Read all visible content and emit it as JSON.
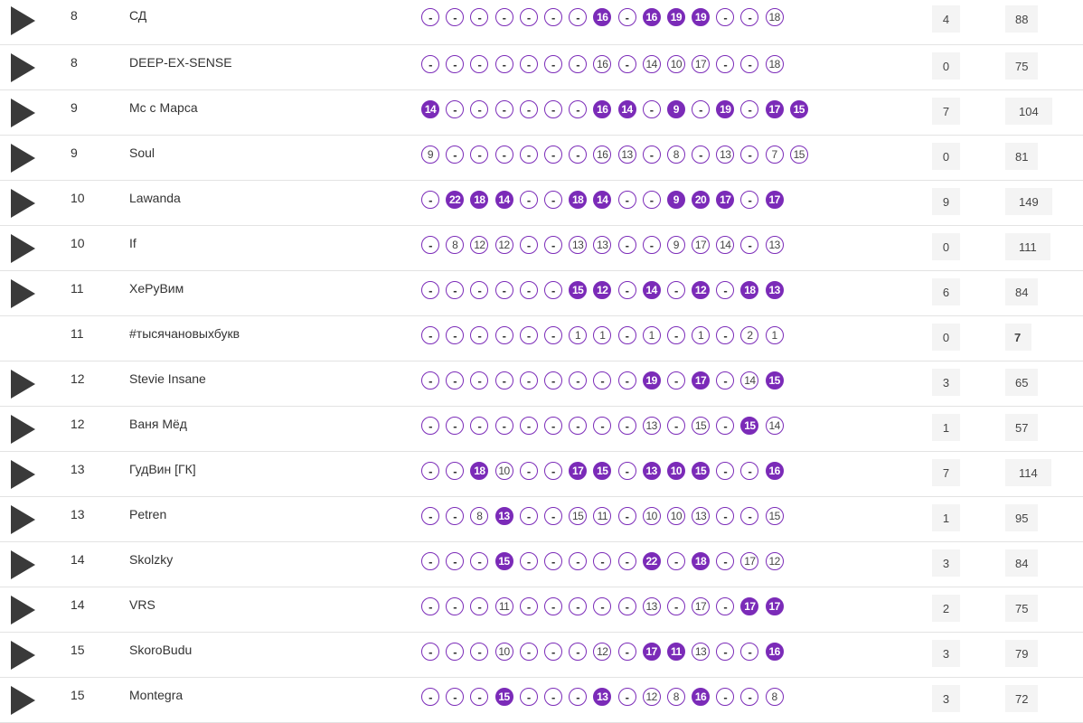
{
  "rows": [
    {
      "place": "8",
      "name": "СД",
      "has_play": true,
      "scores": [
        {
          "t": "-",
          "on": false
        },
        {
          "t": "-",
          "on": false
        },
        {
          "t": "-",
          "on": false
        },
        {
          "t": "-",
          "on": false
        },
        {
          "t": "-",
          "on": false
        },
        {
          "t": "-",
          "on": false
        },
        {
          "t": "-",
          "on": false
        },
        {
          "t": "16",
          "on": true
        },
        {
          "t": "-",
          "on": false
        },
        {
          "t": "16",
          "on": true
        },
        {
          "t": "19",
          "on": true
        },
        {
          "t": "19",
          "on": true
        },
        {
          "t": "-",
          "on": false
        },
        {
          "t": "-",
          "on": false
        },
        {
          "t": "18",
          "on": false
        }
      ],
      "wins": "4",
      "total": "88"
    },
    {
      "place": "8",
      "name": "DEEP-EX-SENSE",
      "has_play": true,
      "scores": [
        {
          "t": "-",
          "on": false
        },
        {
          "t": "-",
          "on": false
        },
        {
          "t": "-",
          "on": false
        },
        {
          "t": "-",
          "on": false
        },
        {
          "t": "-",
          "on": false
        },
        {
          "t": "-",
          "on": false
        },
        {
          "t": "-",
          "on": false
        },
        {
          "t": "16",
          "on": false
        },
        {
          "t": "-",
          "on": false
        },
        {
          "t": "14",
          "on": false
        },
        {
          "t": "10",
          "on": false
        },
        {
          "t": "17",
          "on": false
        },
        {
          "t": "-",
          "on": false
        },
        {
          "t": "-",
          "on": false
        },
        {
          "t": "18",
          "on": false
        }
      ],
      "wins": "0",
      "total": "75"
    },
    {
      "place": "9",
      "name": "Mc с Марса",
      "has_play": true,
      "scores": [
        {
          "t": "14",
          "on": true
        },
        {
          "t": "-",
          "on": false
        },
        {
          "t": "-",
          "on": false
        },
        {
          "t": "-",
          "on": false
        },
        {
          "t": "-",
          "on": false
        },
        {
          "t": "-",
          "on": false
        },
        {
          "t": "-",
          "on": false
        },
        {
          "t": "16",
          "on": true
        },
        {
          "t": "14",
          "on": true
        },
        {
          "t": "-",
          "on": false
        },
        {
          "t": "9",
          "on": true
        },
        {
          "t": "-",
          "on": false
        },
        {
          "t": "19",
          "on": true
        },
        {
          "t": "-",
          "on": false
        },
        {
          "t": "17",
          "on": true
        },
        {
          "t": "15",
          "on": true
        }
      ],
      "wins": "7",
      "total": "104"
    },
    {
      "place": "9",
      "name": "Soul",
      "has_play": true,
      "scores": [
        {
          "t": "9",
          "on": false
        },
        {
          "t": "-",
          "on": false
        },
        {
          "t": "-",
          "on": false
        },
        {
          "t": "-",
          "on": false
        },
        {
          "t": "-",
          "on": false
        },
        {
          "t": "-",
          "on": false
        },
        {
          "t": "-",
          "on": false
        },
        {
          "t": "16",
          "on": false
        },
        {
          "t": "13",
          "on": false
        },
        {
          "t": "-",
          "on": false
        },
        {
          "t": "8",
          "on": false
        },
        {
          "t": "-",
          "on": false
        },
        {
          "t": "13",
          "on": false
        },
        {
          "t": "-",
          "on": false
        },
        {
          "t": "7",
          "on": false
        },
        {
          "t": "15",
          "on": false
        }
      ],
      "wins": "0",
      "total": "81"
    },
    {
      "place": "10",
      "name": "Lawanda",
      "has_play": true,
      "scores": [
        {
          "t": "-",
          "on": false
        },
        {
          "t": "22",
          "on": true
        },
        {
          "t": "18",
          "on": true
        },
        {
          "t": "14",
          "on": true
        },
        {
          "t": "-",
          "on": false
        },
        {
          "t": "-",
          "on": false
        },
        {
          "t": "18",
          "on": true
        },
        {
          "t": "14",
          "on": true
        },
        {
          "t": "-",
          "on": false
        },
        {
          "t": "-",
          "on": false
        },
        {
          "t": "9",
          "on": true
        },
        {
          "t": "20",
          "on": true
        },
        {
          "t": "17",
          "on": true
        },
        {
          "t": "-",
          "on": false
        },
        {
          "t": "17",
          "on": true
        }
      ],
      "wins": "9",
      "total": "149"
    },
    {
      "place": "10",
      "name": "If",
      "has_play": true,
      "scores": [
        {
          "t": "-",
          "on": false
        },
        {
          "t": "8",
          "on": false
        },
        {
          "t": "12",
          "on": false
        },
        {
          "t": "12",
          "on": false
        },
        {
          "t": "-",
          "on": false
        },
        {
          "t": "-",
          "on": false
        },
        {
          "t": "13",
          "on": false
        },
        {
          "t": "13",
          "on": false
        },
        {
          "t": "-",
          "on": false
        },
        {
          "t": "-",
          "on": false
        },
        {
          "t": "9",
          "on": false
        },
        {
          "t": "17",
          "on": false
        },
        {
          "t": "14",
          "on": false
        },
        {
          "t": "-",
          "on": false
        },
        {
          "t": "13",
          "on": false
        }
      ],
      "wins": "0",
      "total": "111"
    },
    {
      "place": "11",
      "name": "ХеРуВим",
      "has_play": true,
      "scores": [
        {
          "t": "-",
          "on": false
        },
        {
          "t": "-",
          "on": false
        },
        {
          "t": "-",
          "on": false
        },
        {
          "t": "-",
          "on": false
        },
        {
          "t": "-",
          "on": false
        },
        {
          "t": "-",
          "on": false
        },
        {
          "t": "15",
          "on": true
        },
        {
          "t": "12",
          "on": true
        },
        {
          "t": "-",
          "on": false
        },
        {
          "t": "14",
          "on": true
        },
        {
          "t": "-",
          "on": false
        },
        {
          "t": "12",
          "on": true
        },
        {
          "t": "-",
          "on": false
        },
        {
          "t": "18",
          "on": true
        },
        {
          "t": "13",
          "on": true
        }
      ],
      "wins": "6",
      "total": "84"
    },
    {
      "place": "11",
      "name": "#тысячановыхбукв",
      "has_play": false,
      "scores": [
        {
          "t": "-",
          "on": false
        },
        {
          "t": "-",
          "on": false
        },
        {
          "t": "-",
          "on": false
        },
        {
          "t": "-",
          "on": false
        },
        {
          "t": "-",
          "on": false
        },
        {
          "t": "-",
          "on": false
        },
        {
          "t": "1",
          "on": false
        },
        {
          "t": "1",
          "on": false
        },
        {
          "t": "-",
          "on": false
        },
        {
          "t": "1",
          "on": false
        },
        {
          "t": "-",
          "on": false
        },
        {
          "t": "1",
          "on": false
        },
        {
          "t": "-",
          "on": false
        },
        {
          "t": "2",
          "on": false
        },
        {
          "t": "1",
          "on": false
        }
      ],
      "wins": "0",
      "total": "7"
    },
    {
      "place": "12",
      "name": "Stevie Insane",
      "has_play": true,
      "scores": [
        {
          "t": "-",
          "on": false
        },
        {
          "t": "-",
          "on": false
        },
        {
          "t": "-",
          "on": false
        },
        {
          "t": "-",
          "on": false
        },
        {
          "t": "-",
          "on": false
        },
        {
          "t": "-",
          "on": false
        },
        {
          "t": "-",
          "on": false
        },
        {
          "t": "-",
          "on": false
        },
        {
          "t": "-",
          "on": false
        },
        {
          "t": "19",
          "on": true
        },
        {
          "t": "-",
          "on": false
        },
        {
          "t": "17",
          "on": true
        },
        {
          "t": "-",
          "on": false
        },
        {
          "t": "14",
          "on": false
        },
        {
          "t": "15",
          "on": true
        }
      ],
      "wins": "3",
      "total": "65"
    },
    {
      "place": "12",
      "name": "Ваня Мёд",
      "has_play": true,
      "scores": [
        {
          "t": "-",
          "on": false
        },
        {
          "t": "-",
          "on": false
        },
        {
          "t": "-",
          "on": false
        },
        {
          "t": "-",
          "on": false
        },
        {
          "t": "-",
          "on": false
        },
        {
          "t": "-",
          "on": false
        },
        {
          "t": "-",
          "on": false
        },
        {
          "t": "-",
          "on": false
        },
        {
          "t": "-",
          "on": false
        },
        {
          "t": "13",
          "on": false
        },
        {
          "t": "-",
          "on": false
        },
        {
          "t": "15",
          "on": false
        },
        {
          "t": "-",
          "on": false
        },
        {
          "t": "15",
          "on": true
        },
        {
          "t": "14",
          "on": false
        }
      ],
      "wins": "1",
      "total": "57"
    },
    {
      "place": "13",
      "name": "ГудВин [ГК]",
      "has_play": true,
      "scores": [
        {
          "t": "-",
          "on": false
        },
        {
          "t": "-",
          "on": false
        },
        {
          "t": "18",
          "on": true
        },
        {
          "t": "10",
          "on": false
        },
        {
          "t": "-",
          "on": false
        },
        {
          "t": "-",
          "on": false
        },
        {
          "t": "17",
          "on": true
        },
        {
          "t": "15",
          "on": true
        },
        {
          "t": "-",
          "on": false
        },
        {
          "t": "13",
          "on": true
        },
        {
          "t": "10",
          "on": true
        },
        {
          "t": "15",
          "on": true
        },
        {
          "t": "-",
          "on": false
        },
        {
          "t": "-",
          "on": false
        },
        {
          "t": "16",
          "on": true
        }
      ],
      "wins": "7",
      "total": "114"
    },
    {
      "place": "13",
      "name": "Petren",
      "has_play": true,
      "scores": [
        {
          "t": "-",
          "on": false
        },
        {
          "t": "-",
          "on": false
        },
        {
          "t": "8",
          "on": false
        },
        {
          "t": "13",
          "on": true
        },
        {
          "t": "-",
          "on": false
        },
        {
          "t": "-",
          "on": false
        },
        {
          "t": "15",
          "on": false
        },
        {
          "t": "11",
          "on": false
        },
        {
          "t": "-",
          "on": false
        },
        {
          "t": "10",
          "on": false
        },
        {
          "t": "10",
          "on": false
        },
        {
          "t": "13",
          "on": false
        },
        {
          "t": "-",
          "on": false
        },
        {
          "t": "-",
          "on": false
        },
        {
          "t": "15",
          "on": false
        }
      ],
      "wins": "1",
      "total": "95"
    },
    {
      "place": "14",
      "name": "Skolzky",
      "has_play": true,
      "scores": [
        {
          "t": "-",
          "on": false
        },
        {
          "t": "-",
          "on": false
        },
        {
          "t": "-",
          "on": false
        },
        {
          "t": "15",
          "on": true
        },
        {
          "t": "-",
          "on": false
        },
        {
          "t": "-",
          "on": false
        },
        {
          "t": "-",
          "on": false
        },
        {
          "t": "-",
          "on": false
        },
        {
          "t": "-",
          "on": false
        },
        {
          "t": "22",
          "on": true
        },
        {
          "t": "-",
          "on": false
        },
        {
          "t": "18",
          "on": true
        },
        {
          "t": "-",
          "on": false
        },
        {
          "t": "17",
          "on": false
        },
        {
          "t": "12",
          "on": false
        }
      ],
      "wins": "3",
      "total": "84"
    },
    {
      "place": "14",
      "name": "VRS",
      "has_play": true,
      "scores": [
        {
          "t": "-",
          "on": false
        },
        {
          "t": "-",
          "on": false
        },
        {
          "t": "-",
          "on": false
        },
        {
          "t": "11",
          "on": false
        },
        {
          "t": "-",
          "on": false
        },
        {
          "t": "-",
          "on": false
        },
        {
          "t": "-",
          "on": false
        },
        {
          "t": "-",
          "on": false
        },
        {
          "t": "-",
          "on": false
        },
        {
          "t": "13",
          "on": false
        },
        {
          "t": "-",
          "on": false
        },
        {
          "t": "17",
          "on": false
        },
        {
          "t": "-",
          "on": false
        },
        {
          "t": "17",
          "on": true
        },
        {
          "t": "17",
          "on": true
        }
      ],
      "wins": "2",
      "total": "75"
    },
    {
      "place": "15",
      "name": "SkoroBudu",
      "has_play": true,
      "scores": [
        {
          "t": "-",
          "on": false
        },
        {
          "t": "-",
          "on": false
        },
        {
          "t": "-",
          "on": false
        },
        {
          "t": "10",
          "on": false
        },
        {
          "t": "-",
          "on": false
        },
        {
          "t": "-",
          "on": false
        },
        {
          "t": "-",
          "on": false
        },
        {
          "t": "12",
          "on": false
        },
        {
          "t": "-",
          "on": false
        },
        {
          "t": "17",
          "on": true
        },
        {
          "t": "11",
          "on": true
        },
        {
          "t": "13",
          "on": false
        },
        {
          "t": "-",
          "on": false
        },
        {
          "t": "-",
          "on": false
        },
        {
          "t": "16",
          "on": true
        }
      ],
      "wins": "3",
      "total": "79"
    },
    {
      "place": "15",
      "name": "Montegra",
      "has_play": true,
      "scores": [
        {
          "t": "-",
          "on": false
        },
        {
          "t": "-",
          "on": false
        },
        {
          "t": "-",
          "on": false
        },
        {
          "t": "15",
          "on": true
        },
        {
          "t": "-",
          "on": false
        },
        {
          "t": "-",
          "on": false
        },
        {
          "t": "-",
          "on": false
        },
        {
          "t": "13",
          "on": true
        },
        {
          "t": "-",
          "on": false
        },
        {
          "t": "12",
          "on": false
        },
        {
          "t": "8",
          "on": false
        },
        {
          "t": "16",
          "on": true
        },
        {
          "t": "-",
          "on": false
        },
        {
          "t": "-",
          "on": false
        },
        {
          "t": "8",
          "on": false
        }
      ],
      "wins": "3",
      "total": "72"
    }
  ],
  "colors": {
    "accent": "#7b2bb8",
    "play_icon": "#3a3a3a",
    "cell_bg": "#f4f4f4",
    "divider": "#e3e3e3"
  }
}
